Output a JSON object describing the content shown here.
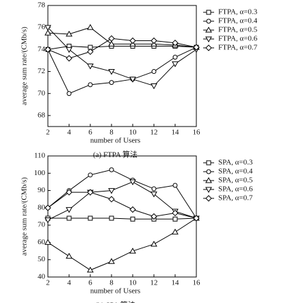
{
  "chart_data": [
    {
      "type": "line",
      "caption": "(a) FTPA 算法",
      "x_label": "number of Users",
      "y_label": "average sum rate/(CMb/s)",
      "x": [
        2,
        4,
        6,
        8,
        10,
        12,
        14,
        16
      ],
      "xlim": [
        2,
        16
      ],
      "xticks": [
        2,
        4,
        6,
        8,
        10,
        12,
        14,
        16
      ],
      "ylim": [
        67,
        78
      ],
      "yticks": [
        68,
        70,
        72,
        74,
        76,
        78
      ],
      "grid": false,
      "legend": "outside-right",
      "series": [
        {
          "name": "FTPA, α=0.3",
          "color": "#000000",
          "marker": "square",
          "values": [
            74,
            74.3,
            74.2,
            74.3,
            74.3,
            74.3,
            74.3,
            74.2
          ]
        },
        {
          "name": "FTPA, α=0.4",
          "color": "#000000",
          "marker": "circle",
          "values": [
            74,
            70,
            70.8,
            71,
            71.3,
            72,
            73.3,
            74.2
          ]
        },
        {
          "name": "FTPA, α=0.5",
          "color": "#000000",
          "marker": "triangle-up",
          "values": [
            75.5,
            75.4,
            76,
            74.5,
            74.5,
            74.5,
            74.4,
            74.2
          ]
        },
        {
          "name": "FTPA, α=0.6",
          "color": "#000000",
          "marker": "triangle-down",
          "values": [
            76,
            74,
            72.5,
            72,
            71.3,
            70.7,
            72.7,
            74
          ]
        },
        {
          "name": "FTPA, α=0.7",
          "color": "#000000",
          "marker": "diamond",
          "values": [
            74,
            73.2,
            73.8,
            75,
            74.8,
            74.8,
            74.6,
            74.2
          ]
        }
      ]
    },
    {
      "type": "line",
      "caption": "(b) SPA 算法",
      "x_label": "number of Users",
      "y_label": "average sum rate/(CMb/s)",
      "x": [
        2,
        4,
        6,
        8,
        10,
        12,
        14,
        16
      ],
      "xlim": [
        2,
        16
      ],
      "xticks": [
        2,
        4,
        6,
        8,
        10,
        12,
        14,
        16
      ],
      "ylim": [
        40,
        110
      ],
      "yticks": [
        40,
        50,
        60,
        70,
        80,
        90,
        100,
        110
      ],
      "grid": false,
      "legend": "outside-right",
      "series": [
        {
          "name": "SPA, α=0.3",
          "color": "#000000",
          "marker": "square",
          "values": [
            74,
            74,
            74,
            74,
            73.5,
            73.5,
            73.5,
            74
          ]
        },
        {
          "name": "SPA, α=0.4",
          "color": "#000000",
          "marker": "circle",
          "values": [
            80,
            90,
            99,
            102,
            96,
            91,
            93,
            74
          ]
        },
        {
          "name": "SPA, α=0.5",
          "color": "#000000",
          "marker": "triangle-up",
          "values": [
            60,
            52,
            44,
            49,
            55,
            59,
            66,
            74
          ]
        },
        {
          "name": "SPA, α=0.6",
          "color": "#000000",
          "marker": "triangle-down",
          "values": [
            73,
            79,
            89,
            90,
            95,
            88,
            78,
            74
          ]
        },
        {
          "name": "SPA, α=0.7",
          "color": "#000000",
          "marker": "diamond",
          "values": [
            80,
            89,
            89,
            85,
            79,
            75,
            77,
            74
          ]
        }
      ]
    }
  ]
}
